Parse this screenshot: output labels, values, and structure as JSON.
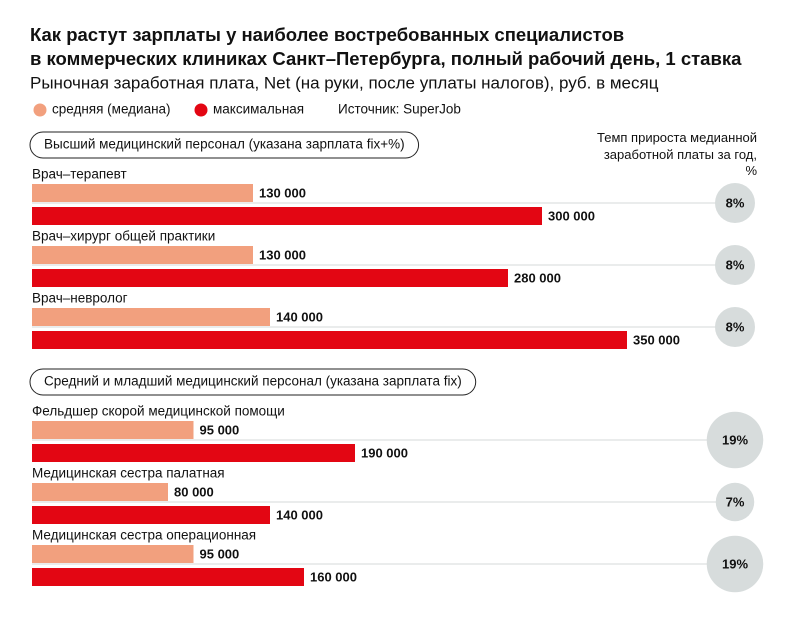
{
  "chart_data": {
    "type": "bar",
    "orientation": "horizontal",
    "title": [
      "Как растут зарплаты у наиболее востребованных специалистов",
      "в коммерческих клиниках Санкт–Петербурга, полный рабочий день, 1 ставка"
    ],
    "subtitle": "Рыночная заработная плата, Net (на руки, после уплаты налогов), руб. в месяц",
    "source": "Источник: SuperJob",
    "growth_title": "Темп прироста медианной заработной платы за год, %",
    "series": [
      {
        "name": "средняя (медиана)",
        "color": "#f2a07e"
      },
      {
        "name": "максимальная",
        "color": "#e30613"
      }
    ],
    "groups": [
      {
        "name": "Высший медицинский персонал (указана зарплата fix+%)",
        "categories": [
          "Врач–терапевт",
          "Врач–хирург общей практики",
          "Врач–невролог"
        ],
        "series": [
          {
            "values": [
              130000,
              130000,
              140000
            ],
            "value_labels": [
              "130 000",
              "130 000",
              "140 000"
            ]
          },
          {
            "values": [
              300000,
              280000,
              350000
            ],
            "value_labels": [
              "300 000",
              "280 000",
              "350 000"
            ]
          }
        ],
        "growth": {
          "values": [
            8,
            8,
            8
          ],
          "value_labels": [
            "8%",
            "8%",
            "8%"
          ]
        }
      },
      {
        "name": "Средний и младший медицинский персонал (указана зарплата fix)",
        "categories": [
          "Фельдшер скорой медицинской помощи",
          "Медицинская сестра палатная",
          "Медицинская сестра операционная"
        ],
        "series": [
          {
            "values": [
              95000,
              80000,
              95000
            ],
            "value_labels": [
              "95 000",
              "80 000",
              "95 000"
            ]
          },
          {
            "values": [
              190000,
              140000,
              160000
            ],
            "value_labels": [
              "190 000",
              "140 000",
              "160 000"
            ]
          }
        ],
        "growth": {
          "values": [
            19,
            7,
            19
          ],
          "value_labels": [
            "19%",
            "7%",
            "19%"
          ]
        }
      }
    ]
  }
}
